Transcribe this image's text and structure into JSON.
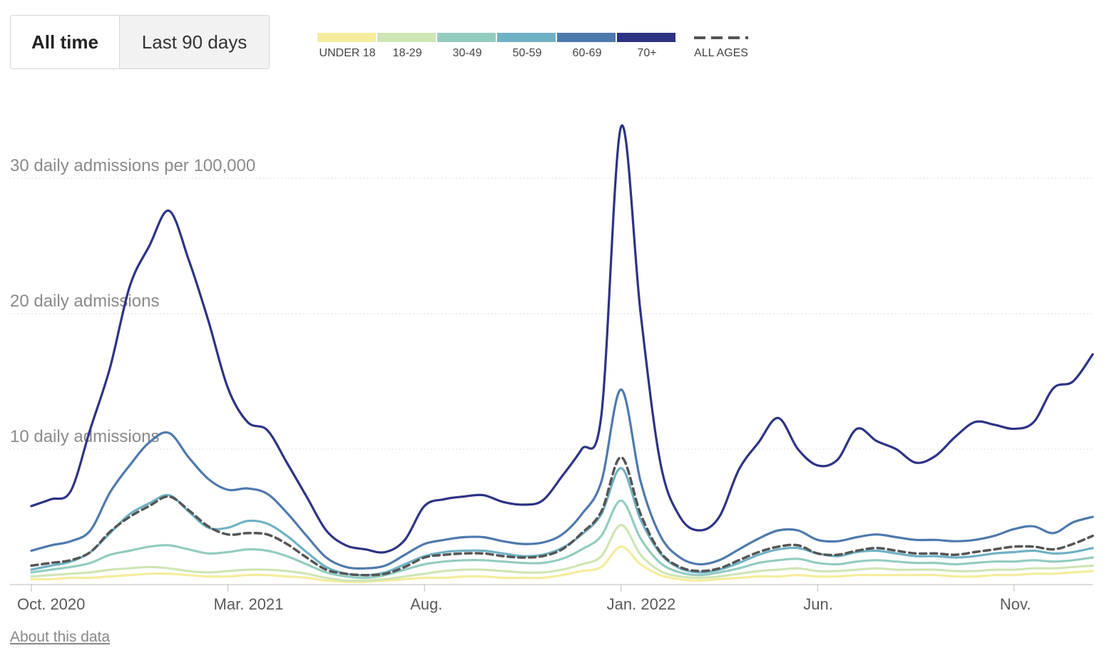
{
  "toggle": {
    "active_label": "All time",
    "inactive_label": "Last 90 days"
  },
  "about_link": "About this data",
  "chart_data": {
    "type": "line",
    "title": "",
    "ylabel": "daily admissions per 100,000",
    "ylim": [
      0,
      35
    ],
    "y_gridlines": [
      {
        "value": 10,
        "label": "10 daily admissions"
      },
      {
        "value": 20,
        "label": "20 daily admissions"
      },
      {
        "value": 30,
        "label": "30 daily admissions per 100,000"
      }
    ],
    "xlim": [
      0,
      27
    ],
    "x_ticks": [
      {
        "label": "Oct. 2020",
        "month": 0
      },
      {
        "label": "Mar. 2021",
        "month": 5
      },
      {
        "label": "Aug.",
        "month": 10
      },
      {
        "label": "Jan. 2022",
        "month": 15
      },
      {
        "label": "Jun.",
        "month": 20
      },
      {
        "label": "Nov.",
        "month": 25
      }
    ],
    "x_months": [
      0,
      0.5,
      1,
      1.5,
      2,
      2.5,
      3,
      3.5,
      4,
      4.5,
      5,
      5.5,
      6,
      6.5,
      7,
      7.5,
      8,
      8.5,
      9,
      9.5,
      10,
      10.5,
      11,
      11.5,
      12,
      12.5,
      13,
      13.5,
      14,
      14.5,
      15,
      15.5,
      16,
      16.5,
      17,
      17.5,
      18,
      18.5,
      19,
      19.5,
      20,
      20.5,
      21,
      21.5,
      22,
      22.5,
      23,
      23.5,
      24,
      24.5,
      25,
      25.5,
      26,
      26.5,
      27
    ],
    "series": [
      {
        "name": "UNDER 18",
        "color": "#f5ec9c",
        "values": [
          0.4,
          0.4,
          0.5,
          0.5,
          0.6,
          0.7,
          0.8,
          0.8,
          0.7,
          0.6,
          0.6,
          0.7,
          0.7,
          0.6,
          0.5,
          0.3,
          0.2,
          0.2,
          0.3,
          0.4,
          0.5,
          0.5,
          0.6,
          0.6,
          0.5,
          0.5,
          0.5,
          0.7,
          1.0,
          1.3,
          2.8,
          1.5,
          0.7,
          0.4,
          0.3,
          0.4,
          0.5,
          0.6,
          0.6,
          0.7,
          0.6,
          0.6,
          0.7,
          0.7,
          0.7,
          0.7,
          0.7,
          0.6,
          0.6,
          0.7,
          0.7,
          0.8,
          0.8,
          0.9,
          1.0
        ]
      },
      {
        "name": "18-29",
        "color": "#cfe5b5",
        "values": [
          0.6,
          0.7,
          0.8,
          0.9,
          1.1,
          1.2,
          1.3,
          1.2,
          1.0,
          0.9,
          1.0,
          1.1,
          1.1,
          1.0,
          0.8,
          0.5,
          0.3,
          0.3,
          0.4,
          0.6,
          0.8,
          1.0,
          1.1,
          1.1,
          1.0,
          0.9,
          0.9,
          1.1,
          1.5,
          2.1,
          4.4,
          2.2,
          1.0,
          0.6,
          0.5,
          0.6,
          0.8,
          1.0,
          1.1,
          1.2,
          1.0,
          1.0,
          1.1,
          1.2,
          1.1,
          1.1,
          1.1,
          1.0,
          1.0,
          1.1,
          1.1,
          1.2,
          1.2,
          1.3,
          1.4
        ]
      },
      {
        "name": "30-49",
        "color": "#93ccbf",
        "values": [
          0.9,
          1.1,
          1.3,
          1.6,
          2.2,
          2.5,
          2.8,
          2.9,
          2.6,
          2.3,
          2.4,
          2.6,
          2.5,
          2.1,
          1.5,
          0.9,
          0.6,
          0.5,
          0.7,
          1.1,
          1.5,
          1.7,
          1.8,
          1.8,
          1.7,
          1.6,
          1.6,
          1.9,
          2.6,
          3.6,
          6.2,
          3.4,
          1.6,
          0.9,
          0.7,
          0.9,
          1.2,
          1.6,
          1.8,
          1.9,
          1.6,
          1.5,
          1.7,
          1.8,
          1.7,
          1.6,
          1.6,
          1.5,
          1.6,
          1.7,
          1.7,
          1.8,
          1.7,
          1.8,
          2.0
        ]
      },
      {
        "name": "50-59",
        "color": "#6fb1c4",
        "values": [
          1.1,
          1.4,
          1.7,
          2.4,
          3.8,
          5.2,
          6.0,
          6.6,
          5.4,
          4.2,
          4.2,
          4.7,
          4.5,
          3.6,
          2.4,
          1.3,
          0.8,
          0.7,
          0.9,
          1.5,
          2.1,
          2.4,
          2.5,
          2.5,
          2.3,
          2.1,
          2.2,
          2.7,
          3.7,
          5.2,
          8.6,
          4.8,
          2.3,
          1.2,
          0.9,
          1.1,
          1.6,
          2.2,
          2.6,
          2.7,
          2.3,
          2.1,
          2.4,
          2.5,
          2.3,
          2.1,
          2.1,
          2.0,
          2.1,
          2.3,
          2.4,
          2.5,
          2.3,
          2.4,
          2.7
        ]
      },
      {
        "name": "60-69",
        "color": "#4e79ad",
        "values": [
          2.5,
          2.9,
          3.2,
          4.0,
          6.8,
          8.8,
          10.5,
          11.2,
          9.4,
          7.8,
          7.0,
          7.1,
          6.7,
          5.3,
          3.6,
          2.0,
          1.3,
          1.2,
          1.4,
          2.2,
          3.0,
          3.3,
          3.5,
          3.5,
          3.2,
          3.0,
          3.1,
          3.7,
          5.2,
          7.6,
          14.4,
          7.6,
          3.6,
          2.0,
          1.5,
          1.8,
          2.6,
          3.4,
          4.0,
          4.0,
          3.3,
          3.2,
          3.5,
          3.7,
          3.5,
          3.3,
          3.3,
          3.2,
          3.3,
          3.6,
          4.1,
          4.3,
          3.8,
          4.6,
          5.0
        ]
      },
      {
        "name": "70+",
        "color": "#2d3384",
        "values": [
          5.8,
          6.3,
          6.9,
          11.5,
          16.0,
          22.0,
          25.0,
          27.6,
          24.0,
          19.5,
          14.5,
          12.0,
          11.4,
          9.0,
          6.5,
          4.0,
          2.9,
          2.6,
          2.4,
          3.3,
          5.8,
          6.3,
          6.5,
          6.6,
          6.1,
          5.9,
          6.2,
          8.0,
          10.0,
          12.5,
          33.8,
          20.0,
          9.0,
          5.0,
          4.0,
          5.0,
          8.5,
          10.5,
          12.3,
          10.0,
          8.8,
          9.2,
          11.5,
          10.6,
          10.0,
          9.0,
          9.5,
          10.9,
          12.0,
          11.8,
          11.5,
          12.0,
          14.5,
          15.0,
          17.0
        ]
      },
      {
        "name": "ALL AGES",
        "color": "#555555",
        "dashed": true,
        "values": [
          1.4,
          1.6,
          1.8,
          2.4,
          3.9,
          5.0,
          5.8,
          6.5,
          5.5,
          4.3,
          3.7,
          3.8,
          3.7,
          3.0,
          2.0,
          1.1,
          0.8,
          0.7,
          0.8,
          1.3,
          2.0,
          2.2,
          2.3,
          2.3,
          2.1,
          2.0,
          2.1,
          2.6,
          3.8,
          5.4,
          9.4,
          5.2,
          2.4,
          1.3,
          1.0,
          1.2,
          1.8,
          2.4,
          2.8,
          2.9,
          2.3,
          2.2,
          2.5,
          2.7,
          2.5,
          2.3,
          2.3,
          2.2,
          2.4,
          2.6,
          2.8,
          2.8,
          2.6,
          3.0,
          3.6
        ]
      }
    ]
  }
}
